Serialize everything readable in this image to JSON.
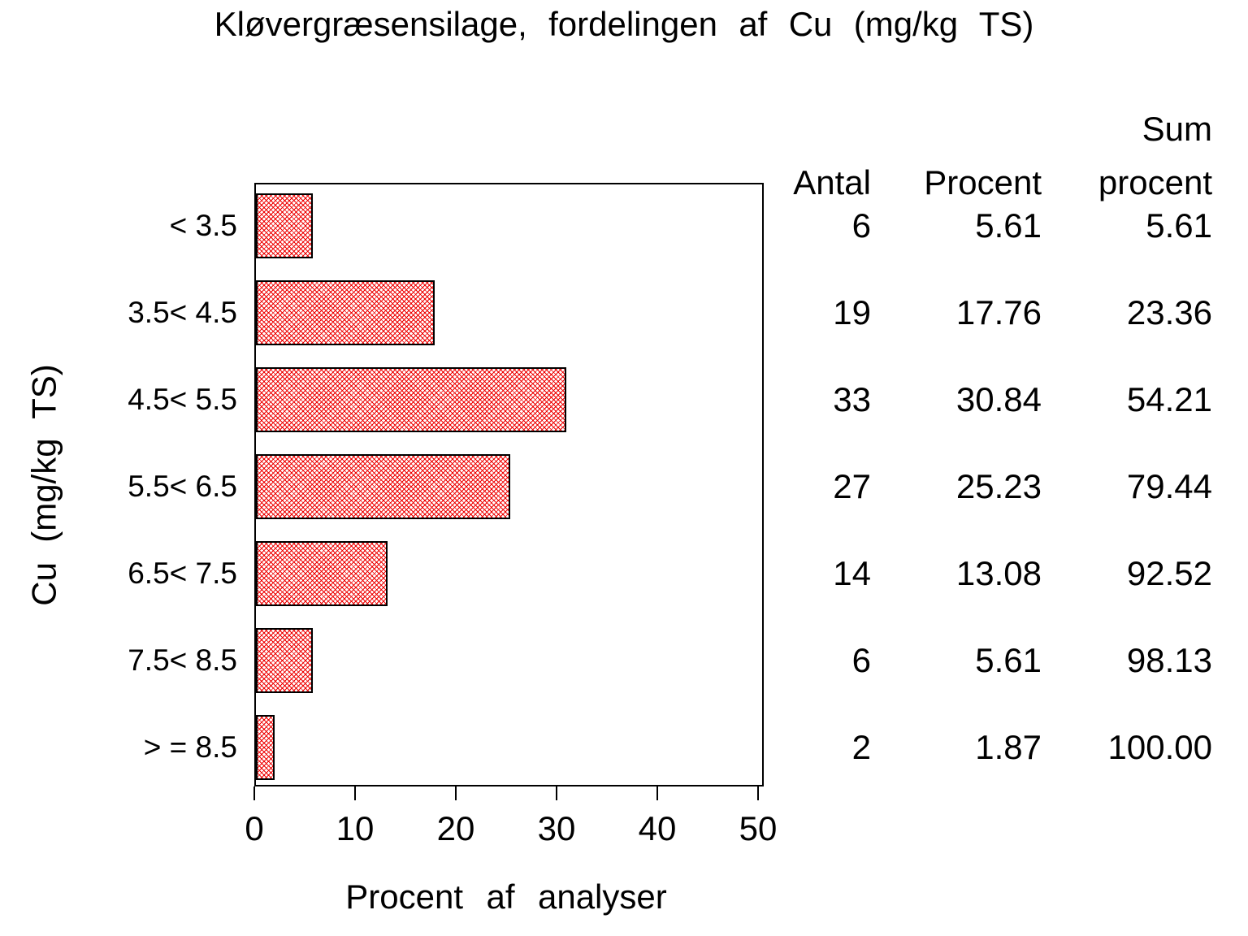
{
  "chart_data": {
    "type": "bar",
    "orientation": "horizontal",
    "title": "Kløvergræsensilage, fordelingen af Cu (mg/kg TS)",
    "xlabel": "Procent af analyser",
    "ylabel": "Cu (mg/kg TS)",
    "categories": [
      "< 3.5",
      "3.5< 4.5",
      "4.5< 5.5",
      "5.5< 6.5",
      "6.5< 7.5",
      "7.5< 8.5",
      "> = 8.5"
    ],
    "values": [
      5.61,
      17.76,
      30.84,
      25.23,
      13.08,
      5.61,
      1.87
    ],
    "counts": [
      6,
      19,
      33,
      27,
      14,
      6,
      2
    ],
    "cumulative_percent": [
      5.61,
      23.36,
      54.21,
      79.44,
      92.52,
      98.13,
      100.0
    ],
    "xlim": [
      0,
      50
    ],
    "xticks": [
      "0",
      "10",
      "20",
      "30",
      "40",
      "50"
    ],
    "grid": false,
    "bar_fill_style": "diagonal-crosshatch",
    "bar_color": "#ee0000",
    "bar_border_color": "#000000",
    "frame_color": "#000000",
    "background_color": "#ffffff",
    "text_color": "#000000"
  },
  "table": {
    "header": {
      "antal": "Antal",
      "procent": "Procent",
      "sum": [
        "Sum",
        "procent"
      ]
    },
    "headers": [
      "Antal",
      "Procent",
      "Sum procent"
    ],
    "rows": [
      [
        "6",
        "5.61",
        "5.61"
      ],
      [
        "19",
        "17.76",
        "23.36"
      ],
      [
        "33",
        "30.84",
        "54.21"
      ],
      [
        "27",
        "25.23",
        "79.44"
      ],
      [
        "14",
        "13.08",
        "92.52"
      ],
      [
        "6",
        "5.61",
        "98.13"
      ],
      [
        "2",
        "1.87",
        "100.00"
      ]
    ]
  }
}
